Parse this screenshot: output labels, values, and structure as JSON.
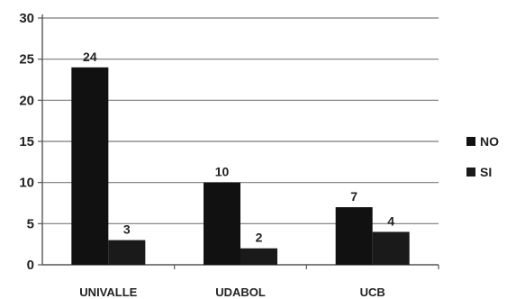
{
  "chart_data": {
    "type": "bar",
    "title": "",
    "xlabel": "",
    "ylabel": "",
    "categories": [
      "UNIVALLE",
      "UDABOL",
      "UCB"
    ],
    "series": [
      {
        "name": "NO",
        "values": [
          24,
          10,
          7
        ],
        "color": "#111111"
      },
      {
        "name": "SI",
        "values": [
          3,
          2,
          4
        ],
        "color": "#1a1a1a"
      }
    ],
    "ylim": [
      0,
      30
    ],
    "yticks": [
      "0",
      "5",
      "10",
      "15",
      "20",
      "25",
      "30"
    ],
    "grid": true,
    "legend": "right",
    "data_labels": true
  }
}
